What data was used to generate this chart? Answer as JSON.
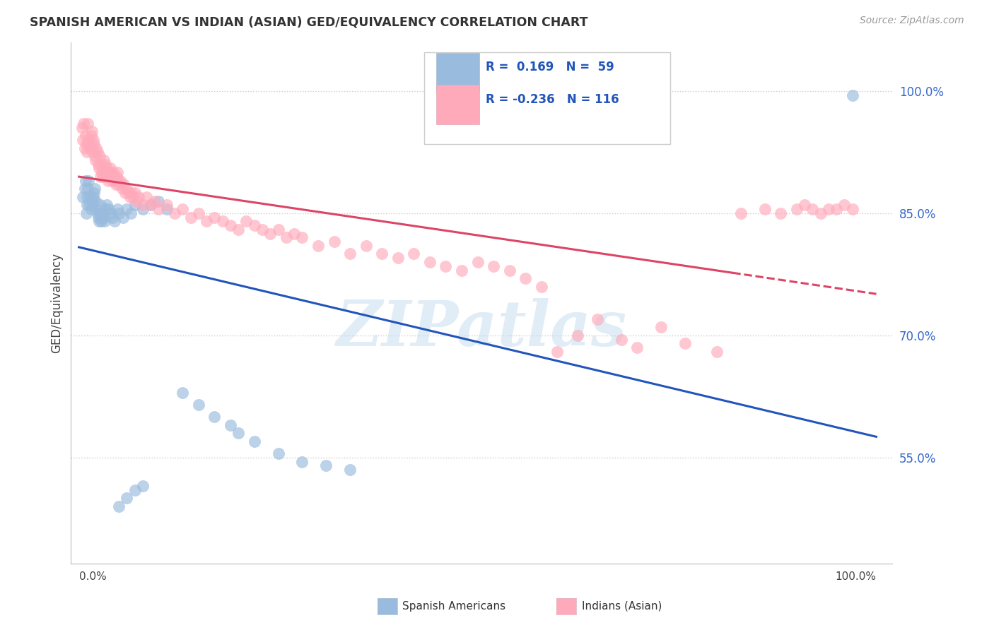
{
  "title": "SPANISH AMERICAN VS INDIAN (ASIAN) GED/EQUIVALENCY CORRELATION CHART",
  "source_text": "Source: ZipAtlas.com",
  "ylabel": "GED/Equivalency",
  "r_blue": 0.169,
  "n_blue": 59,
  "r_pink": -0.236,
  "n_pink": 116,
  "blue_color": "#99BBDD",
  "pink_color": "#FFAABB",
  "blue_line_color": "#2255BB",
  "pink_line_color": "#DD4466",
  "legend_label_blue": "Spanish Americans",
  "legend_label_pink": "Indians (Asian)",
  "watermark": "ZIPatlas",
  "ytick_vals": [
    0.55,
    0.7,
    0.85,
    1.0
  ],
  "ytick_labels": [
    "55.0%",
    "70.0%",
    "85.0%",
    "100.0%"
  ],
  "xlim": [
    -0.01,
    1.02
  ],
  "ylim": [
    0.42,
    1.06
  ],
  "blue_x": [
    0.005,
    0.007,
    0.008,
    0.009,
    0.01,
    0.01,
    0.011,
    0.012,
    0.013,
    0.014,
    0.015,
    0.016,
    0.017,
    0.018,
    0.019,
    0.02,
    0.021,
    0.022,
    0.023,
    0.024,
    0.025,
    0.026,
    0.027,
    0.028,
    0.029,
    0.03,
    0.031,
    0.032,
    0.033,
    0.035,
    0.038,
    0.04,
    0.042,
    0.045,
    0.048,
    0.05,
    0.055,
    0.06,
    0.065,
    0.07,
    0.08,
    0.09,
    0.1,
    0.11,
    0.13,
    0.15,
    0.17,
    0.19,
    0.2,
    0.22,
    0.25,
    0.28,
    0.31,
    0.34,
    0.05,
    0.06,
    0.07,
    0.08,
    0.97
  ],
  "blue_y": [
    0.87,
    0.88,
    0.89,
    0.85,
    0.86,
    0.87,
    0.88,
    0.89,
    0.86,
    0.87,
    0.855,
    0.86,
    0.865,
    0.87,
    0.875,
    0.88,
    0.865,
    0.855,
    0.85,
    0.845,
    0.84,
    0.85,
    0.86,
    0.84,
    0.845,
    0.85,
    0.845,
    0.84,
    0.855,
    0.86,
    0.855,
    0.85,
    0.845,
    0.84,
    0.855,
    0.85,
    0.845,
    0.855,
    0.85,
    0.86,
    0.855,
    0.86,
    0.865,
    0.855,
    0.63,
    0.615,
    0.6,
    0.59,
    0.58,
    0.57,
    0.555,
    0.545,
    0.54,
    0.535,
    0.49,
    0.5,
    0.51,
    0.515,
    0.995
  ],
  "pink_x": [
    0.004,
    0.005,
    0.006,
    0.007,
    0.008,
    0.009,
    0.01,
    0.011,
    0.012,
    0.013,
    0.014,
    0.015,
    0.016,
    0.017,
    0.018,
    0.019,
    0.02,
    0.021,
    0.022,
    0.023,
    0.024,
    0.025,
    0.026,
    0.027,
    0.028,
    0.029,
    0.03,
    0.031,
    0.032,
    0.033,
    0.034,
    0.035,
    0.036,
    0.037,
    0.038,
    0.039,
    0.04,
    0.041,
    0.042,
    0.043,
    0.044,
    0.045,
    0.046,
    0.047,
    0.048,
    0.049,
    0.05,
    0.052,
    0.054,
    0.056,
    0.058,
    0.06,
    0.062,
    0.064,
    0.066,
    0.068,
    0.07,
    0.072,
    0.075,
    0.08,
    0.085,
    0.09,
    0.095,
    0.1,
    0.11,
    0.12,
    0.13,
    0.14,
    0.15,
    0.16,
    0.17,
    0.18,
    0.19,
    0.2,
    0.21,
    0.22,
    0.23,
    0.24,
    0.25,
    0.26,
    0.27,
    0.28,
    0.3,
    0.32,
    0.34,
    0.36,
    0.38,
    0.4,
    0.42,
    0.44,
    0.46,
    0.48,
    0.5,
    0.52,
    0.54,
    0.56,
    0.58,
    0.6,
    0.625,
    0.65,
    0.68,
    0.7,
    0.73,
    0.76,
    0.8,
    0.83,
    0.86,
    0.88,
    0.9,
    0.91,
    0.92,
    0.93,
    0.94,
    0.95,
    0.96,
    0.97
  ],
  "pink_y": [
    0.955,
    0.94,
    0.96,
    0.93,
    0.945,
    0.935,
    0.925,
    0.96,
    0.94,
    0.935,
    0.93,
    0.945,
    0.95,
    0.925,
    0.94,
    0.935,
    0.92,
    0.915,
    0.93,
    0.925,
    0.91,
    0.905,
    0.92,
    0.895,
    0.91,
    0.9,
    0.895,
    0.915,
    0.9,
    0.91,
    0.895,
    0.905,
    0.9,
    0.89,
    0.895,
    0.905,
    0.9,
    0.895,
    0.89,
    0.9,
    0.895,
    0.89,
    0.885,
    0.895,
    0.9,
    0.89,
    0.885,
    0.89,
    0.88,
    0.885,
    0.875,
    0.88,
    0.875,
    0.87,
    0.875,
    0.87,
    0.875,
    0.865,
    0.87,
    0.86,
    0.87,
    0.86,
    0.865,
    0.855,
    0.86,
    0.85,
    0.855,
    0.845,
    0.85,
    0.84,
    0.845,
    0.84,
    0.835,
    0.83,
    0.84,
    0.835,
    0.83,
    0.825,
    0.83,
    0.82,
    0.825,
    0.82,
    0.81,
    0.815,
    0.8,
    0.81,
    0.8,
    0.795,
    0.8,
    0.79,
    0.785,
    0.78,
    0.79,
    0.785,
    0.78,
    0.77,
    0.76,
    0.68,
    0.7,
    0.72,
    0.695,
    0.685,
    0.71,
    0.69,
    0.68,
    0.85,
    0.855,
    0.85,
    0.855,
    0.86,
    0.855,
    0.85,
    0.855,
    0.855,
    0.86,
    0.855
  ]
}
